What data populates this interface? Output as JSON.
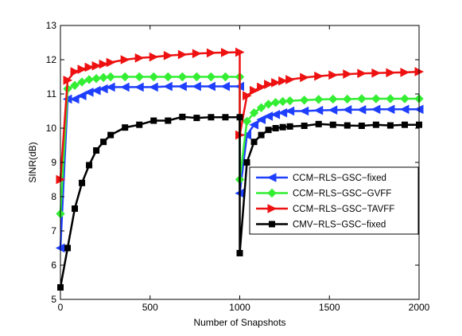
{
  "chart_data": {
    "type": "line",
    "title": "",
    "xlabel": "Number of Snapshots",
    "ylabel": "SINR(dB)",
    "xlim": [
      0,
      2000
    ],
    "ylim": [
      5,
      13
    ],
    "xticks": [
      0,
      500,
      1000,
      1500,
      2000
    ],
    "yticks": [
      5,
      6,
      7,
      8,
      9,
      10,
      11,
      12,
      13
    ],
    "xtick_labels": [
      "0",
      "500",
      "1000",
      "1500",
      "2000"
    ],
    "ytick_labels": [
      "5",
      "6",
      "7",
      "8",
      "9",
      "10",
      "11",
      "12",
      "13"
    ],
    "grid": false,
    "legend_position": "center-right",
    "series": [
      {
        "name": "CCM−RLS−GSC−fixed",
        "color": "#1f3fff",
        "marker": "triangle-left",
        "x": [
          0,
          40,
          80,
          120,
          160,
          200,
          240,
          280,
          360,
          440,
          520,
          600,
          680,
          760,
          840,
          920,
          1000,
          1000,
          1040,
          1080,
          1120,
          1160,
          1200,
          1240,
          1280,
          1360,
          1440,
          1520,
          1600,
          1680,
          1760,
          1840,
          1920,
          2000
        ],
        "y": [
          6.5,
          10.85,
          10.85,
          10.95,
          11.05,
          11.1,
          11.15,
          11.2,
          11.2,
          11.2,
          11.2,
          11.22,
          11.22,
          11.22,
          11.22,
          11.22,
          11.22,
          8.1,
          9.8,
          10.1,
          10.25,
          10.35,
          10.4,
          10.45,
          10.5,
          10.5,
          10.52,
          10.53,
          10.54,
          10.54,
          10.55,
          10.55,
          10.55,
          10.55
        ]
      },
      {
        "name": "CCM−RLS−GSC−GVFF",
        "color": "#33ee33",
        "marker": "diamond",
        "x": [
          0,
          40,
          80,
          120,
          160,
          200,
          240,
          280,
          360,
          440,
          520,
          600,
          680,
          760,
          840,
          920,
          1000,
          1000,
          1040,
          1080,
          1120,
          1160,
          1200,
          1240,
          1280,
          1360,
          1440,
          1520,
          1600,
          1680,
          1760,
          1840,
          1920,
          2000
        ],
        "y": [
          7.5,
          11.15,
          11.25,
          11.35,
          11.42,
          11.45,
          11.48,
          11.5,
          11.5,
          11.5,
          11.5,
          11.5,
          11.5,
          11.5,
          11.5,
          11.5,
          11.5,
          8.5,
          10.2,
          10.45,
          10.6,
          10.7,
          10.75,
          10.78,
          10.8,
          10.82,
          10.84,
          10.85,
          10.85,
          10.86,
          10.86,
          10.86,
          10.86,
          10.86
        ]
      },
      {
        "name": "CCM−RLS−GSC−TAVFF",
        "color": "#ee1111",
        "marker": "triangle-right",
        "x": [
          0,
          40,
          80,
          120,
          160,
          200,
          240,
          280,
          360,
          440,
          520,
          600,
          680,
          760,
          840,
          920,
          1000,
          1000,
          1040,
          1080,
          1120,
          1160,
          1200,
          1240,
          1280,
          1360,
          1440,
          1520,
          1600,
          1680,
          1760,
          1840,
          1920,
          2000
        ],
        "y": [
          8.5,
          11.4,
          11.65,
          11.72,
          11.78,
          11.82,
          11.87,
          11.92,
          12.0,
          12.05,
          12.08,
          12.12,
          12.15,
          12.18,
          12.2,
          12.21,
          12.22,
          9.8,
          10.95,
          11.1,
          11.2,
          11.28,
          11.33,
          11.38,
          11.42,
          11.48,
          11.52,
          11.55,
          11.58,
          11.6,
          11.61,
          11.62,
          11.63,
          11.65
        ]
      },
      {
        "name": "CMV−RLS−GSC−fixed",
        "color": "#000000",
        "marker": "square",
        "x": [
          0,
          40,
          80,
          120,
          160,
          200,
          240,
          280,
          360,
          440,
          520,
          600,
          680,
          760,
          840,
          920,
          1000,
          1000,
          1040,
          1080,
          1120,
          1160,
          1200,
          1240,
          1280,
          1360,
          1440,
          1520,
          1600,
          1680,
          1760,
          1840,
          1920,
          2000
        ],
        "y": [
          5.35,
          6.5,
          7.65,
          8.4,
          8.92,
          9.35,
          9.6,
          9.8,
          10.02,
          10.1,
          10.22,
          10.22,
          10.33,
          10.3,
          10.32,
          10.32,
          10.32,
          6.35,
          9.0,
          9.6,
          9.8,
          9.95,
          10.0,
          10.03,
          10.05,
          10.07,
          10.12,
          10.1,
          10.08,
          10.07,
          10.1,
          10.08,
          10.1,
          10.1
        ]
      }
    ]
  }
}
